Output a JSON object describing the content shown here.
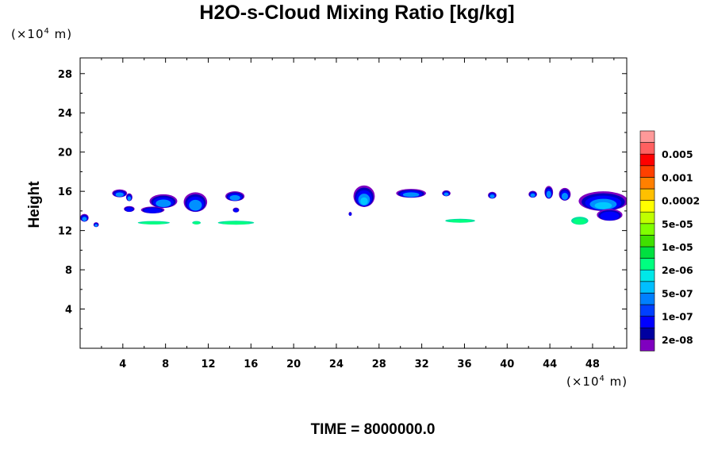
{
  "chart_data": {
    "type": "heatmap",
    "title": "H2O-s-Cloud Mixing Ratio [kg/kg]",
    "ylabel": "Height",
    "xlabel": "",
    "x_unit": "(×10⁴ m)",
    "y_unit": "(×10⁴ m)",
    "footer": "TIME = 8000000.0",
    "xlim": [
      0,
      51.2
    ],
    "ylim": [
      0,
      29.6
    ],
    "x_ticks": [
      4,
      8,
      12,
      16,
      20,
      24,
      28,
      32,
      36,
      40,
      44,
      48
    ],
    "y_ticks": [
      4,
      8,
      12,
      16,
      20,
      24,
      28
    ],
    "legend": {
      "labels": [
        "2e-08",
        "1e-07",
        "5e-07",
        "2e-06",
        "1e-05",
        "5e-05",
        "0.0002",
        "0.001",
        "0.005"
      ],
      "colors": [
        "#7f00bf",
        "#0000a0",
        "#0000ff",
        "#0040ff",
        "#0080ff",
        "#00bfff",
        "#00e8e8",
        "#00ff80",
        "#00e040",
        "#40e000",
        "#80ff00",
        "#c0ff00",
        "#ffff00",
        "#ffc000",
        "#ff8000",
        "#ff4000",
        "#ff0000",
        "#ff6060",
        "#ff9999"
      ]
    },
    "clouds": [
      {
        "x": 0.4,
        "y": 13.3,
        "w": 0.8,
        "h": 0.8,
        "level": 0.45
      },
      {
        "x": 1.5,
        "y": 12.6,
        "w": 0.5,
        "h": 0.5,
        "level": 0.4
      },
      {
        "x": 3.7,
        "y": 15.8,
        "w": 1.4,
        "h": 0.8,
        "level": 0.6
      },
      {
        "x": 4.6,
        "y": 15.4,
        "w": 0.6,
        "h": 0.8,
        "level": 0.7
      },
      {
        "x": 4.6,
        "y": 14.2,
        "w": 1.0,
        "h": 0.6,
        "level": 0.35
      },
      {
        "x": 7.8,
        "y": 15.0,
        "w": 2.6,
        "h": 1.4,
        "level": 0.75
      },
      {
        "x": 6.8,
        "y": 14.1,
        "w": 2.2,
        "h": 0.7,
        "level": 0.35
      },
      {
        "x": 6.9,
        "y": 12.8,
        "w": 3.0,
        "h": 0.35,
        "level": 0.15
      },
      {
        "x": 10.8,
        "y": 14.9,
        "w": 2.2,
        "h": 2.0,
        "level": 0.75
      },
      {
        "x": 10.9,
        "y": 12.8,
        "w": 0.8,
        "h": 0.35,
        "level": 0.2
      },
      {
        "x": 14.5,
        "y": 15.5,
        "w": 1.8,
        "h": 1.0,
        "level": 0.7
      },
      {
        "x": 14.6,
        "y": 14.1,
        "w": 0.6,
        "h": 0.5,
        "level": 0.3
      },
      {
        "x": 14.6,
        "y": 12.8,
        "w": 3.4,
        "h": 0.4,
        "level": 0.2
      },
      {
        "x": 25.3,
        "y": 13.7,
        "w": 0.3,
        "h": 0.4,
        "level": 0.3
      },
      {
        "x": 26.6,
        "y": 15.5,
        "w": 2.0,
        "h": 2.2,
        "level": 0.8
      },
      {
        "x": 31.0,
        "y": 15.8,
        "w": 2.8,
        "h": 0.9,
        "level": 0.7
      },
      {
        "x": 34.3,
        "y": 15.8,
        "w": 0.8,
        "h": 0.6,
        "level": 0.7
      },
      {
        "x": 35.6,
        "y": 13.0,
        "w": 2.8,
        "h": 0.4,
        "level": 0.2
      },
      {
        "x": 38.6,
        "y": 15.6,
        "w": 0.8,
        "h": 0.7,
        "level": 0.7
      },
      {
        "x": 42.4,
        "y": 15.7,
        "w": 0.8,
        "h": 0.7,
        "level": 0.7
      },
      {
        "x": 43.9,
        "y": 15.9,
        "w": 0.8,
        "h": 1.3,
        "level": 0.75
      },
      {
        "x": 45.4,
        "y": 15.7,
        "w": 1.1,
        "h": 1.3,
        "level": 0.75
      },
      {
        "x": 49.0,
        "y": 15.0,
        "w": 4.6,
        "h": 2.0,
        "level": 0.85
      },
      {
        "x": 46.8,
        "y": 13.0,
        "w": 1.6,
        "h": 0.8,
        "level": 0.25
      },
      {
        "x": 49.6,
        "y": 13.6,
        "w": 2.4,
        "h": 1.2,
        "level": 0.25
      }
    ]
  }
}
